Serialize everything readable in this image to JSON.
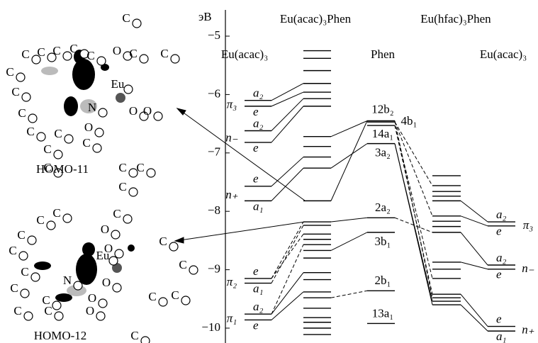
{
  "diagram": {
    "axis_unit": "эВ",
    "ylim": [
      -4.7,
      -10.25
    ],
    "yticks": [
      {
        "value": -5,
        "label": "−5"
      },
      {
        "value": -6,
        "label": "−6"
      },
      {
        "value": -7,
        "label": "−7"
      },
      {
        "value": -8,
        "label": "−8"
      },
      {
        "value": -9,
        "label": "−9"
      },
      {
        "value": -10,
        "label": "−10"
      }
    ],
    "top_headers": [
      "Eu(acac)₃Phen",
      "Eu(hfac)₃Phen"
    ],
    "columns": [
      {
        "header": "Eu(acac)₃",
        "groups": [
          {
            "label": "π₃",
            "levels": [
              {
                "energy": -6.1,
                "label": "a₂"
              },
              {
                "energy": -6.2,
                "label": "e"
              }
            ]
          },
          {
            "label": "n₋",
            "levels": [
              {
                "energy": -6.62,
                "label": "a₂"
              },
              {
                "energy": -6.82,
                "label": "e"
              }
            ]
          },
          {
            "label": "n₊",
            "levels": [
              {
                "energy": -7.57,
                "label": "e"
              },
              {
                "energy": -7.82,
                "label": "a₁"
              }
            ]
          },
          {
            "label": "π₂",
            "levels": [
              {
                "energy": -9.15,
                "label": "e"
              },
              {
                "energy": -9.23,
                "label": "a₁"
              }
            ]
          },
          {
            "label": "π₁",
            "levels": [
              {
                "energy": -9.76,
                "label": "a₂"
              },
              {
                "energy": -9.86,
                "label": "e"
              }
            ]
          }
        ]
      },
      {
        "levels": [
          {
            "energy": -5.25
          },
          {
            "energy": -5.38
          },
          {
            "energy": -5.59
          },
          {
            "energy": -5.81
          },
          {
            "energy": -5.96
          },
          {
            "energy": -6.07
          },
          {
            "energy": -6.2
          },
          {
            "energy": -6.72
          },
          {
            "energy": -6.89
          },
          {
            "energy": -7.07
          },
          {
            "energy": -7.26
          },
          {
            "energy": -7.82
          },
          {
            "energy": -8.18
          },
          {
            "energy": -8.24
          },
          {
            "energy": -8.39
          },
          {
            "energy": -8.48
          },
          {
            "energy": -8.57
          },
          {
            "energy": -8.67
          },
          {
            "energy": -8.8
          },
          {
            "energy": -9.05
          },
          {
            "energy": -9.17
          },
          {
            "energy": -9.38
          },
          {
            "energy": -9.48
          },
          {
            "energy": -9.66
          },
          {
            "energy": -9.82
          },
          {
            "energy": -9.9
          },
          {
            "energy": -10.0
          },
          {
            "energy": -10.11
          }
        ]
      },
      {
        "header": "Phen",
        "levels": [
          {
            "energy": -6.45,
            "label": "12b₂"
          },
          {
            "energy": -6.47,
            "label": "4b₁"
          },
          {
            "energy": -6.53,
            "label": "14a₁"
          },
          {
            "energy": -6.84,
            "label": "3a₂"
          },
          {
            "energy": -8.11,
            "label": "2a₂"
          },
          {
            "energy": -8.36,
            "label": "3b₁"
          },
          {
            "energy": -9.36,
            "label": "2b₁"
          },
          {
            "energy": -9.92,
            "label": "13a₁"
          }
        ]
      },
      {
        "levels": [
          {
            "energy": -7.39
          },
          {
            "energy": -7.56
          },
          {
            "energy": -7.66
          },
          {
            "energy": -7.74
          },
          {
            "energy": -7.82
          },
          {
            "energy": -8.08
          },
          {
            "energy": -8.17
          },
          {
            "energy": -8.26
          },
          {
            "energy": -8.36
          },
          {
            "energy": -8.87
          },
          {
            "energy": -8.99
          },
          {
            "energy": -9.15
          },
          {
            "energy": -9.42
          },
          {
            "energy": -9.48
          },
          {
            "energy": -9.54
          },
          {
            "energy": -9.6
          }
        ]
      },
      {
        "header": "Eu(acac)₃",
        "groups": [
          {
            "label": "π₃",
            "levels": [
              {
                "energy": -8.18,
                "label": "a₂"
              },
              {
                "energy": -8.25,
                "label": "e"
              }
            ]
          },
          {
            "label": "n₋",
            "levels": [
              {
                "energy": -8.92,
                "label": "a₂"
              },
              {
                "energy": -8.99,
                "label": "e"
              }
            ]
          },
          {
            "label": "n₊",
            "levels": [
              {
                "energy": -9.97,
                "label": "e"
              },
              {
                "energy": -10.05,
                "label": "a₁"
              }
            ]
          }
        ]
      }
    ],
    "molecules": [
      {
        "caption": "HOMO-11",
        "atoms": [
          "C",
          "C",
          "C",
          "C",
          "C",
          "C",
          "O",
          "C",
          "C",
          "C",
          "Eu",
          "C",
          "N",
          "C",
          "O",
          "O",
          "O",
          "C",
          "C",
          "C",
          "C",
          "C",
          "C",
          "C"
        ]
      },
      {
        "caption": "HOMO-12",
        "atoms": [
          "C",
          "C",
          "C",
          "C",
          "O",
          "O",
          "C",
          "C",
          "C",
          "Eu",
          "C",
          "C",
          "N",
          "O",
          "C",
          "C",
          "C",
          "O",
          "C",
          "C",
          "C",
          "O",
          "C"
        ]
      }
    ]
  }
}
